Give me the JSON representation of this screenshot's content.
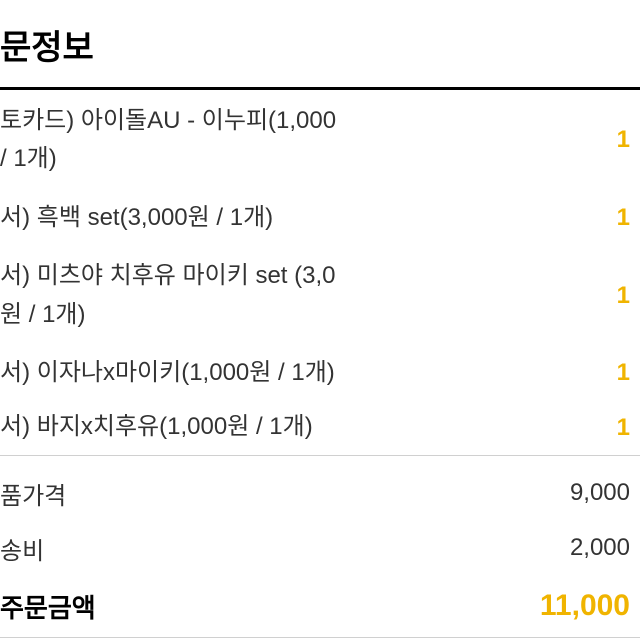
{
  "title": "문정보",
  "items": [
    {
      "text": "토카드) 아이돌AU - 이누피(1,000\n / 1개)",
      "price": "1"
    },
    {
      "text": "서) 흑백 set(3,000원 / 1개)",
      "price": "1"
    },
    {
      "text": "서) 미츠야 치후유 마이키 set (3,0\n원 / 1개)",
      "price": "1"
    },
    {
      "text": "서) 이자나x마이키(1,000원 / 1개)",
      "price": "1"
    },
    {
      "text": "서) 바지x치후유(1,000원 / 1개)",
      "price": "1"
    }
  ],
  "summary": [
    {
      "label": "품가격",
      "value": "9,000"
    },
    {
      "label": "송비",
      "value": "2,000"
    }
  ],
  "total": {
    "label": "주문금액",
    "value": "11,000"
  },
  "colors": {
    "accent": "#f0b400",
    "text": "#333333",
    "title": "#000000",
    "divider_thick": "#000000",
    "divider_thin": "#d0d0d0"
  }
}
